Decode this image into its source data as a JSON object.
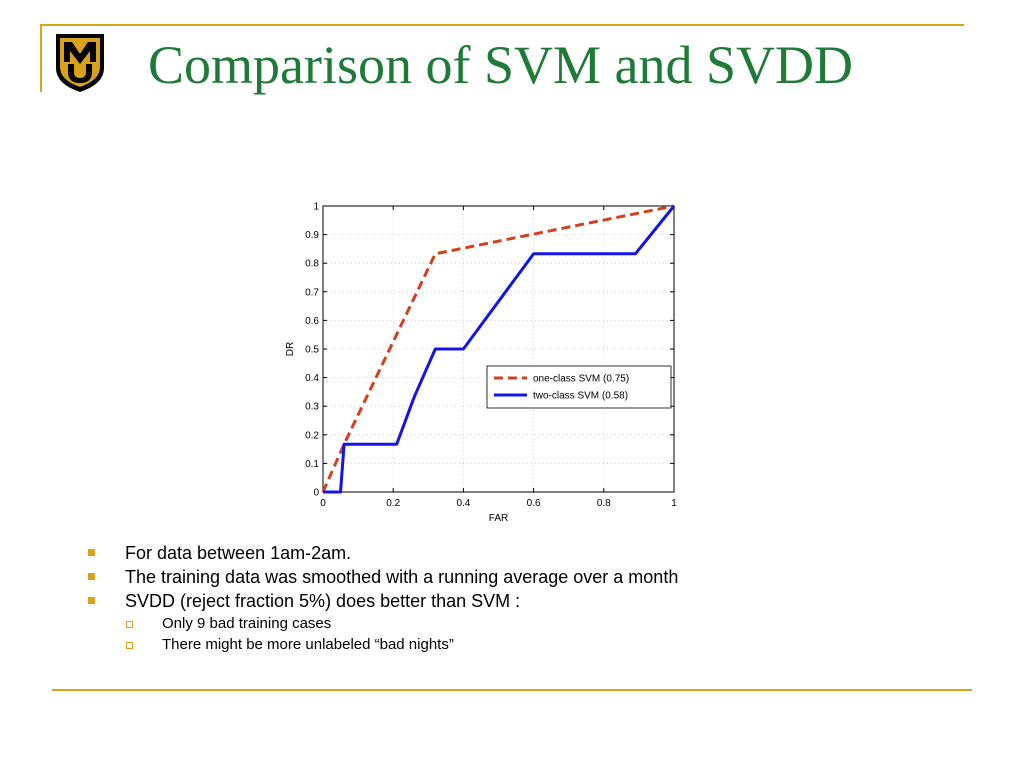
{
  "slide": {
    "title": "Comparison of SVM and SVDD",
    "accent_color": "#d9a21b",
    "title_color": "#1f7a3a",
    "logo": {
      "icon": "mu-logo-icon",
      "text": "MU",
      "colors": [
        "#000000",
        "#d9a21b"
      ]
    },
    "bullets": [
      {
        "text": "For data between 1am-2am.",
        "level": 1
      },
      {
        "text": "The training data was smoothed with a running average over a month",
        "level": 1
      },
      {
        "text": "SVDD (reject fraction 5%) does better than SVM :",
        "level": 1
      },
      {
        "text": "Only 9 bad training cases",
        "level": 2
      },
      {
        "text": "There might be more unlabeled “bad nights”",
        "level": 2
      }
    ]
  },
  "chart_data": {
    "type": "line",
    "title": "",
    "xlabel": "FAR",
    "ylabel": "DR",
    "xlim": [
      0,
      1
    ],
    "ylim": [
      0,
      1
    ],
    "xticks": [
      "0",
      "0.2",
      "0.4",
      "0.6",
      "0.8",
      "1"
    ],
    "yticks": [
      "0",
      "0.1",
      "0.2",
      "0.3",
      "0.4",
      "0.5",
      "0.6",
      "0.7",
      "0.8",
      "0.9",
      "1"
    ],
    "grid": true,
    "legend_position": "lower-right",
    "series": [
      {
        "name": "one-class SVM (0.75)",
        "color": "#d2401f",
        "style": "dashed",
        "x": [
          0,
          0.06,
          0.32,
          1
        ],
        "y": [
          0,
          0.167,
          0.833,
          1
        ]
      },
      {
        "name": "two-class SVM (0.58)",
        "color": "#1414e6",
        "style": "solid",
        "x": [
          0,
          0.05,
          0.06,
          0.21,
          0.26,
          0.32,
          0.4,
          0.6,
          0.89,
          1
        ],
        "y": [
          0,
          0,
          0.167,
          0.167,
          0.333,
          0.5,
          0.5,
          0.833,
          0.833,
          1
        ]
      }
    ]
  }
}
